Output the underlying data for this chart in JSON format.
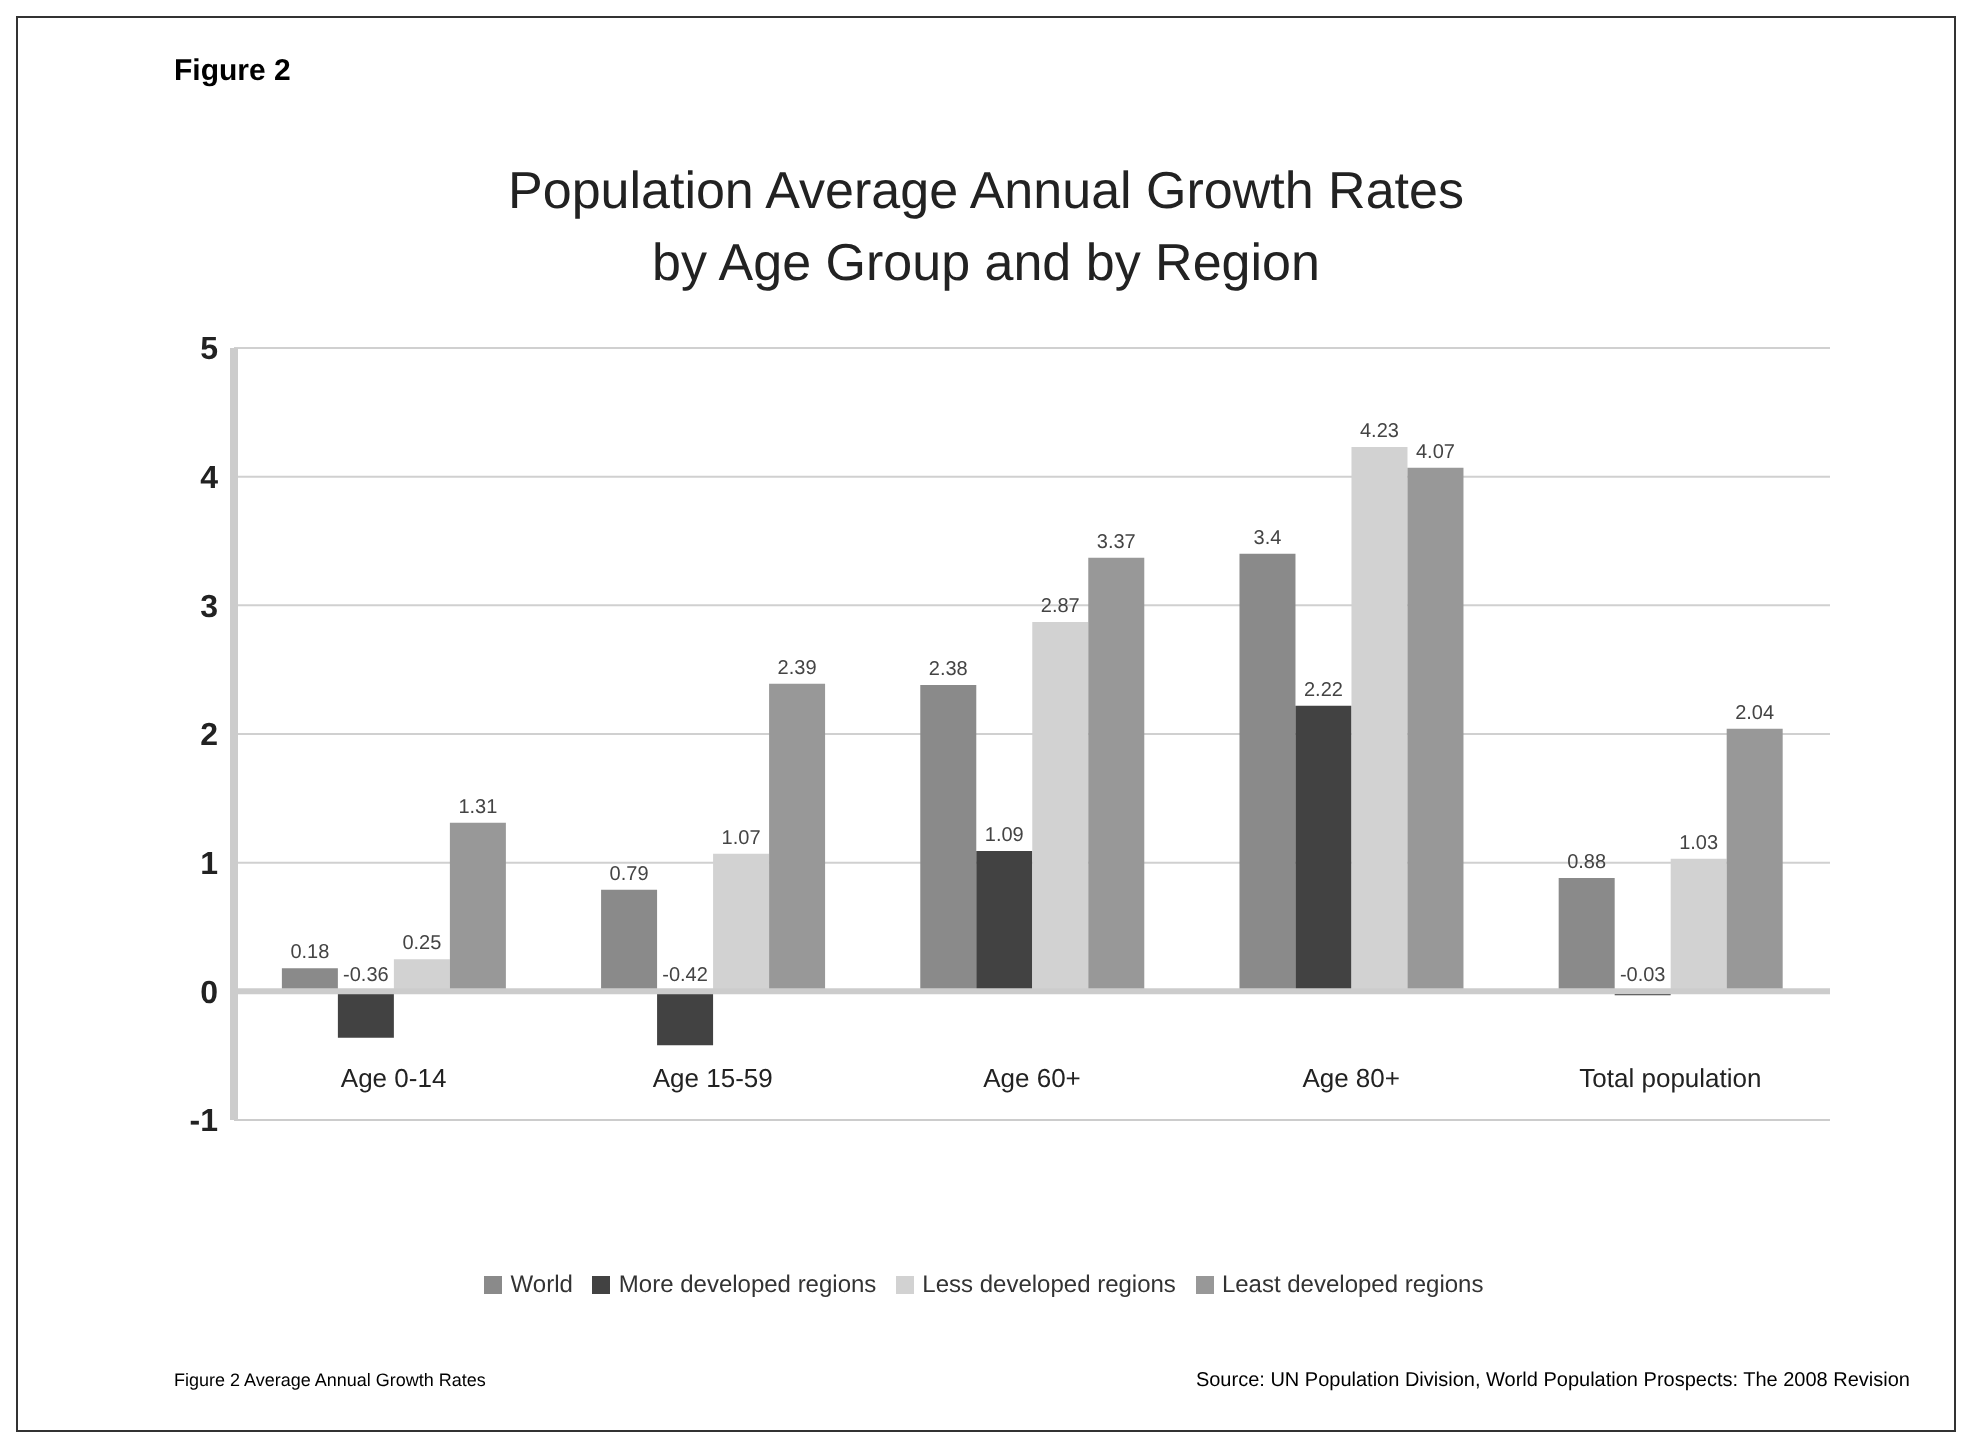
{
  "chart_data": {
    "type": "bar",
    "title": "Population Average Annual Growth Rates\nby Age Group and by Region",
    "categories": [
      "Age 0-14",
      "Age 15-59",
      "Age 60+",
      "Age 80+",
      "Total population"
    ],
    "series": [
      {
        "name": "World",
        "color": "#8a8a8a",
        "values": [
          0.18,
          0.79,
          2.38,
          3.4,
          0.88
        ]
      },
      {
        "name": "More developed regions",
        "color": "#424242",
        "values": [
          -0.36,
          -0.42,
          1.09,
          2.22,
          -0.03
        ]
      },
      {
        "name": "Less developed regions",
        "color": "#d2d2d2",
        "values": [
          0.25,
          1.07,
          2.87,
          4.23,
          1.03
        ]
      },
      {
        "name": "Least developed regions",
        "color": "#989898",
        "values": [
          1.31,
          2.39,
          3.37,
          4.07,
          2.04
        ]
      }
    ],
    "ylim": [
      -1,
      5
    ],
    "yticks": [
      -1,
      0,
      1,
      2,
      3,
      4,
      5
    ],
    "grid": "y",
    "legend": "bottom",
    "data_labels": true,
    "annotations": [
      "Figure 2",
      "Figure 2 Average Annual Growth Rates",
      "Source: UN Population Division, World Population Prospects: The 2008 Revision"
    ]
  }
}
